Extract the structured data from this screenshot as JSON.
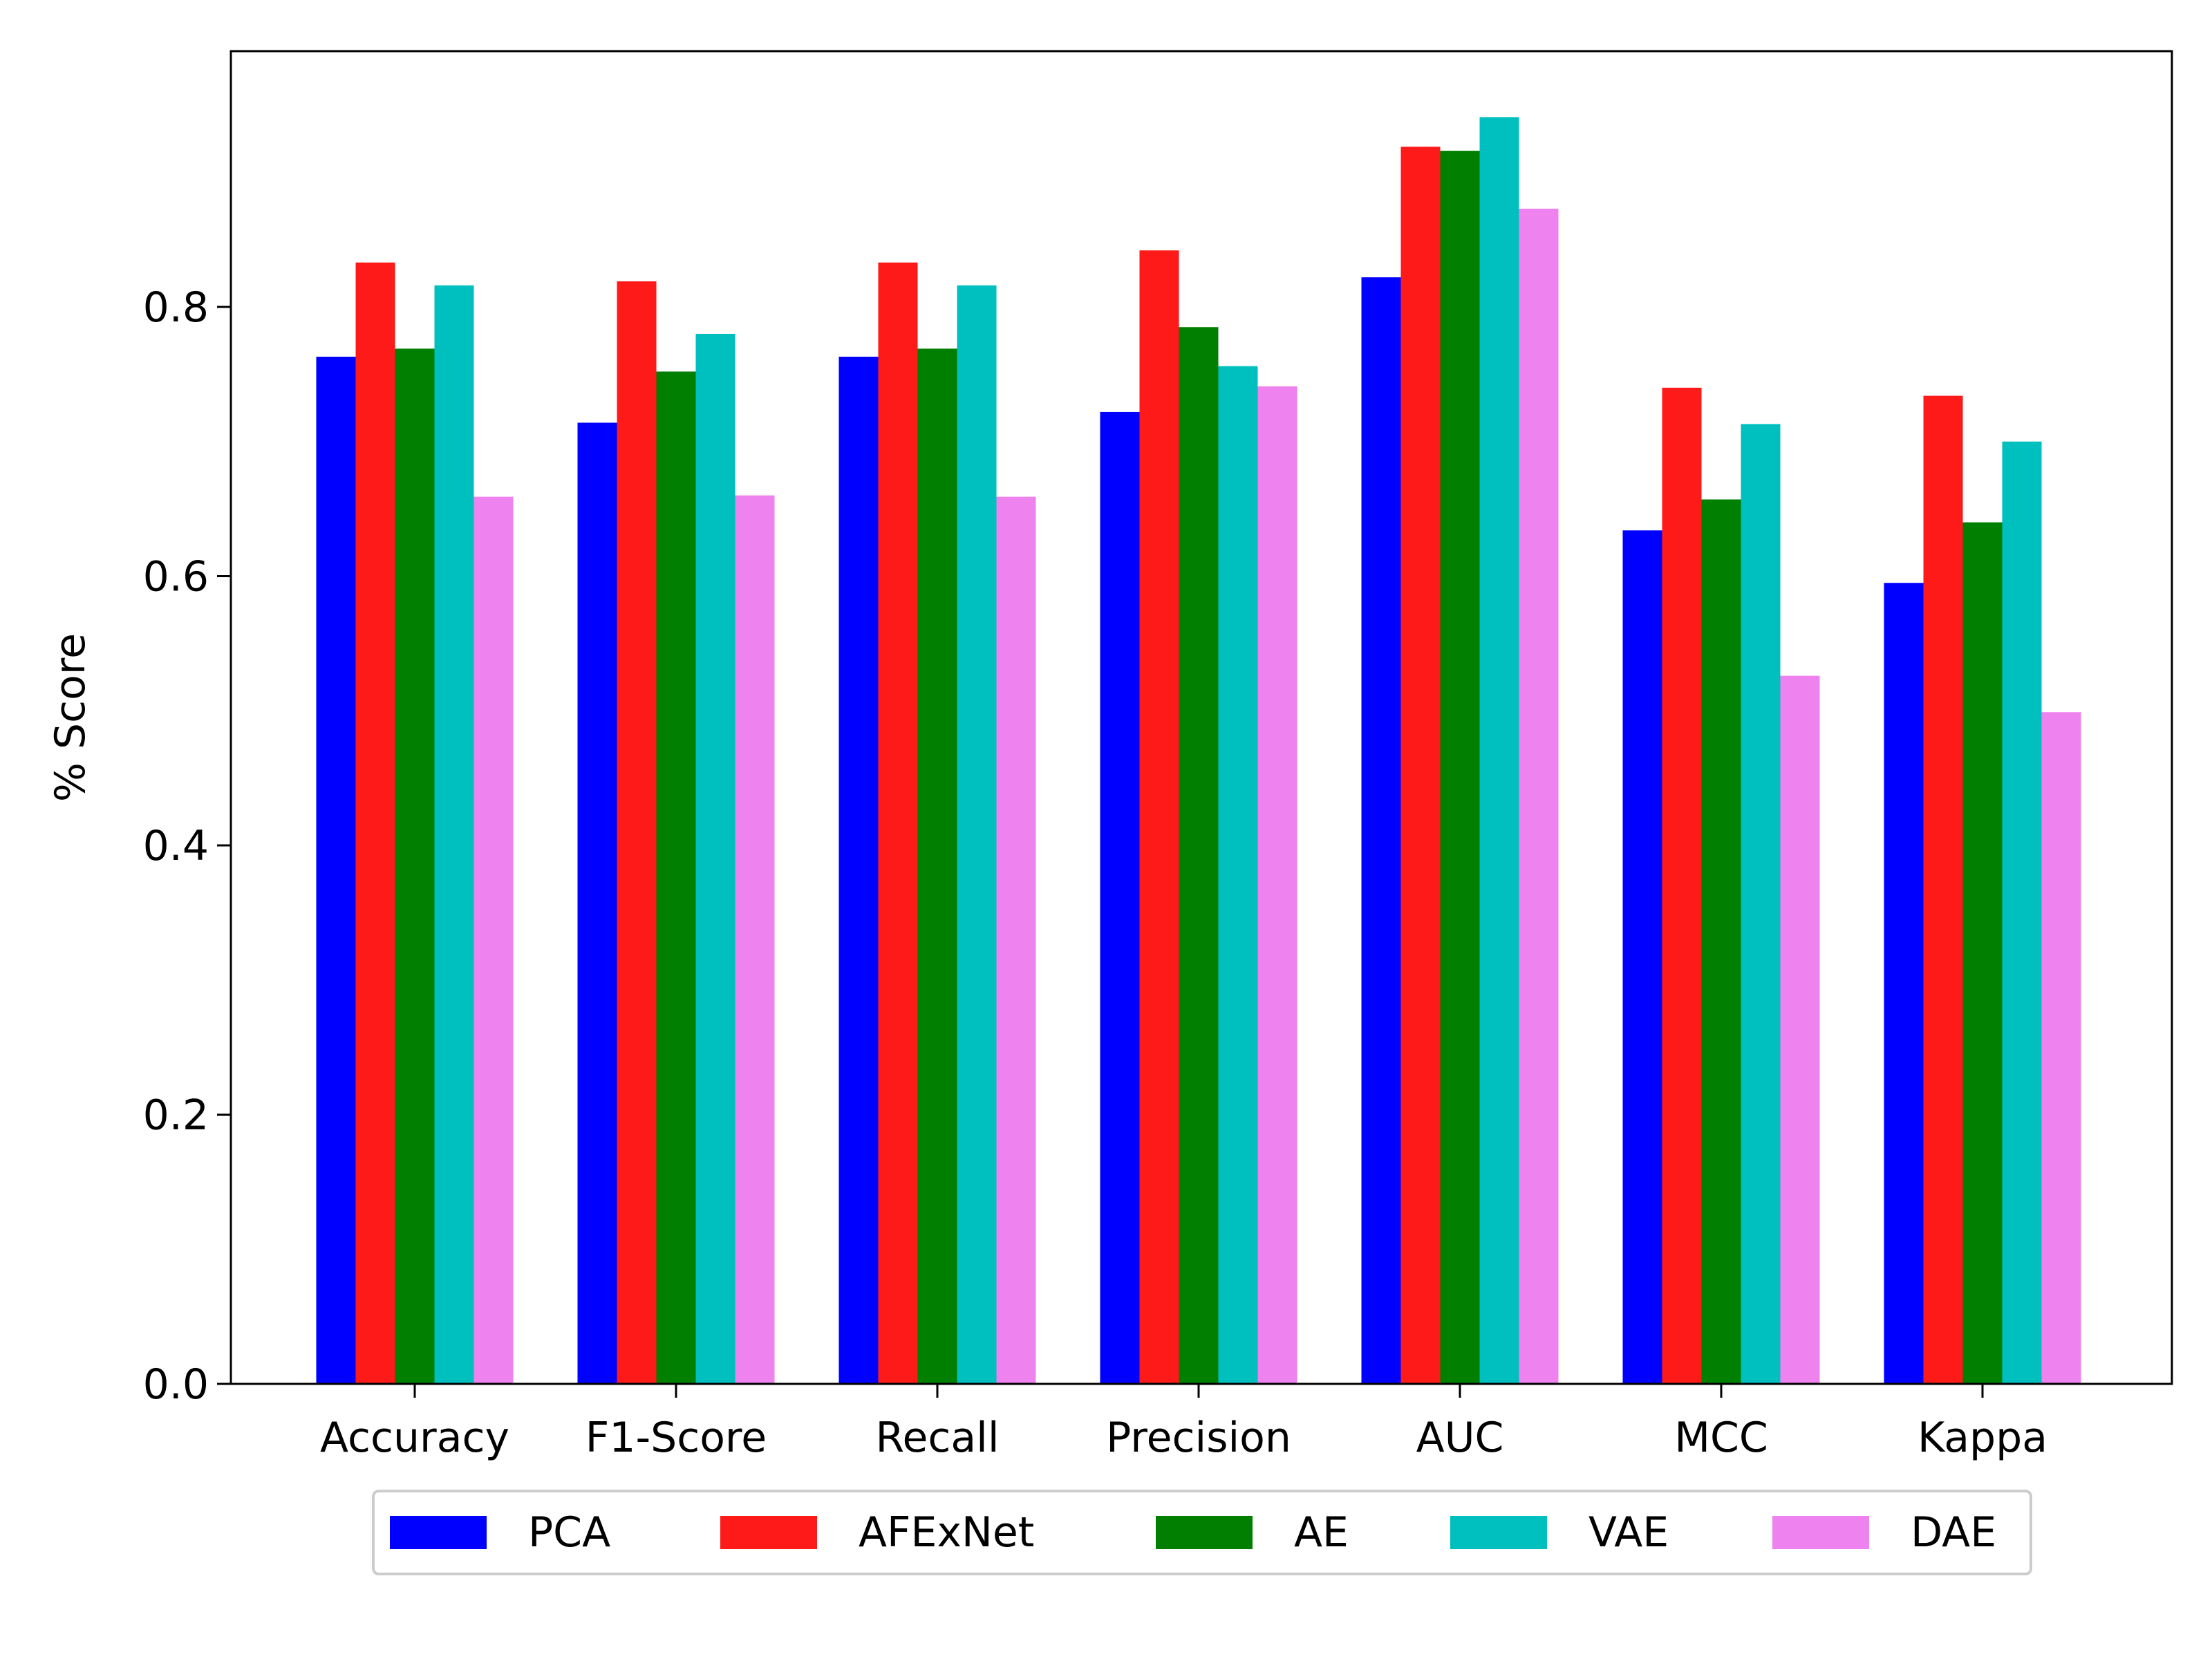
{
  "chart_data": {
    "type": "bar",
    "title": "",
    "xlabel": "",
    "ylabel": "% Score",
    "categories": [
      "Accuracy",
      "F1-Score",
      "Recall",
      "Precision",
      "AUC",
      "MCC",
      "Kappa"
    ],
    "series": [
      {
        "name": "PCA",
        "color": "#0000ff",
        "values": [
          0.763,
          0.714,
          0.763,
          0.722,
          0.822,
          0.634,
          0.595
        ]
      },
      {
        "name": "AFExNet",
        "color": "#ff1a1a",
        "values": [
          0.833,
          0.819,
          0.833,
          0.842,
          0.919,
          0.74,
          0.734
        ]
      },
      {
        "name": "AE",
        "color": "#007f00",
        "values": [
          0.769,
          0.752,
          0.769,
          0.785,
          0.916,
          0.657,
          0.64
        ]
      },
      {
        "name": "VAE",
        "color": "#00bfbf",
        "values": [
          0.816,
          0.78,
          0.816,
          0.756,
          0.941,
          0.713,
          0.7
        ]
      },
      {
        "name": "DAE",
        "color": "#ee82ee",
        "values": [
          0.659,
          0.66,
          0.659,
          0.741,
          0.873,
          0.526,
          0.499
        ]
      }
    ],
    "ylim": [
      0,
      0.99
    ],
    "yticks": [
      "0.0",
      "0.2",
      "0.4",
      "0.6",
      "0.8"
    ],
    "grid": false,
    "legend_position": "bottom-center"
  }
}
